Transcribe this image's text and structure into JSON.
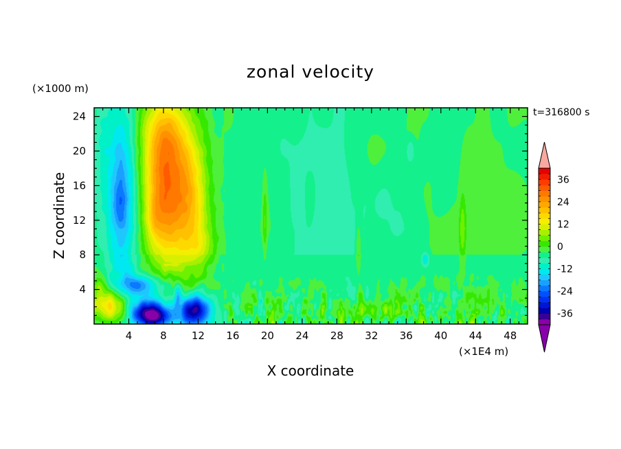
{
  "chart_data": {
    "type": "heatmap",
    "title": "zonal velocity",
    "time_label": "t=316800 s",
    "xlabel": "X coordinate",
    "ylabel": "Z coordinate",
    "x_unit": "(×1E4 m)",
    "y_unit": "(×1000 m)",
    "xlim": [
      0,
      50
    ],
    "ylim": [
      0,
      25
    ],
    "x_ticks": [
      4,
      8,
      12,
      16,
      20,
      24,
      28,
      32,
      36,
      40,
      44,
      48
    ],
    "y_ticks": [
      4,
      8,
      12,
      16,
      20,
      24
    ],
    "colorbar": {
      "levels": [
        -42,
        -39,
        -36,
        -33,
        -30,
        -27,
        -24,
        -21,
        -18,
        -15,
        -12,
        -9,
        -6,
        -3,
        0,
        3,
        6,
        9,
        12,
        15,
        18,
        21,
        24,
        27,
        30,
        33,
        36,
        39,
        42
      ],
      "tick_labels": [
        "36",
        "24",
        "12",
        "0",
        "-12",
        "-24",
        "-36"
      ],
      "tick_values": [
        36,
        24,
        12,
        0,
        -12,
        -24,
        -36
      ],
      "colors": [
        "#8a00a8",
        "#3a0096",
        "#0000b0",
        "#0014d2",
        "#0032ee",
        "#0050ff",
        "#0a78ff",
        "#1aa0ff",
        "#1ec8ff",
        "#00e8f0",
        "#00f0c8",
        "#30eeb0",
        "#14f08c",
        "#4ef03c",
        "#36e800",
        "#6ef000",
        "#a8f000",
        "#d8f000",
        "#f4ee00",
        "#ffd800",
        "#ffc000",
        "#ffa800",
        "#ff9000",
        "#ff7800",
        "#ff5a00",
        "#ff3c00",
        "#f01e00",
        "#e80000"
      ],
      "over_color": "#f8a8a0",
      "under_color": "#8800aa"
    },
    "features": [
      {
        "x": 3.0,
        "z": 14.0,
        "value": -20,
        "note": "negative jet column"
      },
      {
        "x": 8.0,
        "z": 14.5,
        "value": 28,
        "note": "positive jet core"
      },
      {
        "x": 10.5,
        "z": 12.0,
        "value": 18,
        "note": "positive jet"
      },
      {
        "x": 7.0,
        "z": 1.0,
        "value": -36,
        "note": "low-level negative core"
      },
      {
        "x": 11.5,
        "z": 1.5,
        "value": -33,
        "note": "low-level negative core"
      },
      {
        "x": 2.0,
        "z": 2.0,
        "value": 15,
        "note": "low-level positive"
      },
      {
        "x": 30.0,
        "z": 14.0,
        "value": -6,
        "note": "weak background"
      }
    ]
  }
}
